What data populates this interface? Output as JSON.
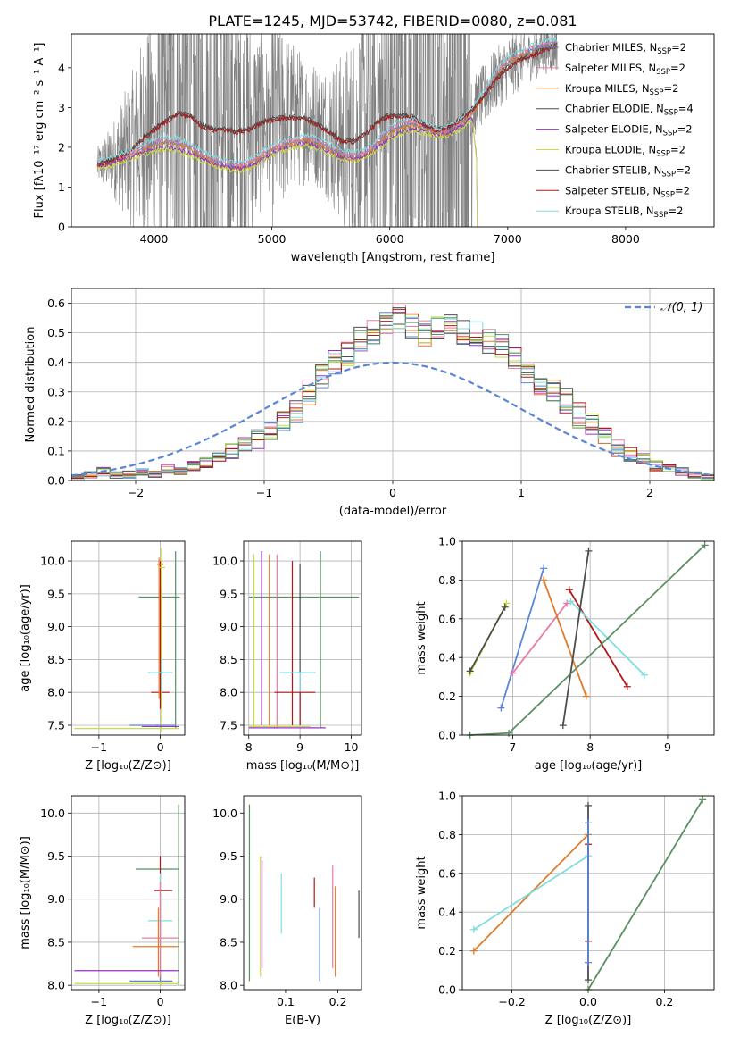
{
  "title": "PLATE=1245, MJD=53742, FIBERID=0080, z=0.081",
  "colors": {
    "chabrier_miles": "#5b86d6",
    "salpeter_miles": "#ea7aa6",
    "kroupa_miles": "#e07b2a",
    "chabrier_elodie": "#4d4d4d",
    "salpeter_elodie": "#9a2fc2",
    "kroupa_elodie": "#c8de3c",
    "chabrier_stelib": "#4d4d4d",
    "salpeter_stelib": "#b21818",
    "kroupa_stelib": "#7fdde0",
    "green": "#5a8f63",
    "data": "#808080"
  },
  "chart_data": [
    {
      "id": "spectrum",
      "type": "line",
      "xlabel": "wavelength [Angstrom, rest frame]",
      "ylabel": "Flux [fλ10⁻¹⁷ erg cm⁻² s⁻¹ A⁻¹]",
      "xlim": [
        3300,
        8750
      ],
      "ylim": [
        0,
        4.85
      ],
      "xticks": [
        "4000",
        "5000",
        "6000",
        "7000",
        "8000"
      ],
      "yticks": [
        "0",
        "1",
        "2",
        "3",
        "4"
      ],
      "data_range": [
        3520,
        7420
      ],
      "legend": [
        {
          "label": "Chabrier MILES, N",
          "sub": "SSP",
          "suffix": "=2",
          "color_key": "chabrier_miles"
        },
        {
          "label": "Salpeter MILES, N",
          "sub": "SSP",
          "suffix": "=2",
          "color_key": "salpeter_miles"
        },
        {
          "label": "Kroupa MILES, N",
          "sub": "SSP",
          "suffix": "=2",
          "color_key": "kroupa_miles"
        },
        {
          "label": "Chabrier ELODIE, N",
          "sub": "SSP",
          "suffix": "=4",
          "color_key": "chabrier_elodie"
        },
        {
          "label": "Salpeter ELODIE, N",
          "sub": "SSP",
          "suffix": "=2",
          "color_key": "salpeter_elodie"
        },
        {
          "label": "Kroupa ELODIE, N",
          "sub": "SSP",
          "suffix": "=2",
          "color_key": "kroupa_elodie"
        },
        {
          "label": "Chabrier STELIB, N",
          "sub": "SSP",
          "suffix": "=2",
          "color_key": "chabrier_stelib"
        },
        {
          "label": "Salpeter STELIB, N",
          "sub": "SSP",
          "suffix": "=2",
          "color_key": "salpeter_stelib"
        },
        {
          "label": "Kroupa STELIB, N",
          "sub": "SSP",
          "suffix": "=2",
          "color_key": "kroupa_stelib"
        }
      ],
      "model_anchors": {
        "x": [
          3520,
          3650,
          3800,
          3900,
          4000,
          4100,
          4200,
          4300,
          4400,
          4500,
          4600,
          4700,
          4800,
          4900,
          5000,
          5100,
          5200,
          5300,
          5400,
          5500,
          5600,
          5700,
          5800,
          5900,
          6000,
          6100,
          6200,
          6300,
          6400,
          6500,
          6600,
          6700,
          6800,
          6900,
          7000,
          7100,
          7200,
          7300,
          7420
        ],
        "stelib": [
          1.55,
          1.7,
          1.9,
          2.2,
          2.45,
          2.65,
          2.85,
          2.8,
          2.55,
          2.45,
          2.45,
          2.4,
          2.45,
          2.6,
          2.7,
          2.75,
          2.75,
          2.7,
          2.55,
          2.35,
          2.15,
          2.15,
          2.35,
          2.65,
          2.8,
          2.8,
          2.75,
          2.55,
          2.45,
          2.5,
          2.7,
          2.95,
          3.3,
          3.7,
          4.0,
          4.2,
          4.3,
          4.45,
          4.55
        ],
        "miles": [
          1.55,
          1.65,
          1.8,
          1.95,
          2.1,
          2.15,
          2.1,
          2.0,
          1.8,
          1.65,
          1.55,
          1.5,
          1.55,
          1.75,
          1.95,
          2.05,
          2.15,
          2.2,
          2.1,
          1.95,
          1.8,
          1.75,
          1.85,
          2.1,
          2.4,
          2.55,
          2.6,
          2.5,
          2.35,
          2.4,
          2.6,
          2.9,
          3.3,
          3.8,
          4.15,
          4.3,
          4.45,
          4.55,
          4.6
        ],
        "elodie": [
          1.5,
          1.6,
          1.75,
          1.85,
          1.95,
          2.0,
          1.95,
          1.85,
          1.7,
          1.6,
          1.5,
          1.45,
          1.5,
          1.65,
          1.85,
          1.95,
          2.05,
          2.1,
          2.0,
          1.85,
          1.75,
          1.7,
          1.8,
          2.0,
          2.25,
          2.4,
          2.45,
          2.4,
          2.3,
          2.35,
          2.5,
          2.75,
          0.0,
          0.0,
          0.0,
          0.0,
          0.0,
          0.0,
          0.0
        ]
      }
    },
    {
      "id": "residuals",
      "type": "step",
      "xlabel": "(data-model)/error",
      "ylabel": "Normed distribution",
      "xlim": [
        -2.5,
        2.5
      ],
      "ylim": [
        0,
        0.65
      ],
      "xticks": [
        "−2",
        "−1",
        "0",
        "1",
        "2"
      ],
      "xtick_values": [
        -2,
        -1,
        0,
        1,
        2
      ],
      "yticks": [
        "0.0",
        "0.1",
        "0.2",
        "0.3",
        "0.4",
        "0.5",
        "0.6"
      ],
      "legend": [
        "𝒩(0, 1)"
      ],
      "bin_width": 0.1,
      "bin_start": -2.5,
      "heights": [
        0.01,
        0.02,
        0.03,
        0.02,
        0.02,
        0.03,
        0.02,
        0.04,
        0.03,
        0.05,
        0.06,
        0.08,
        0.1,
        0.12,
        0.14,
        0.17,
        0.2,
        0.24,
        0.3,
        0.35,
        0.4,
        0.43,
        0.48,
        0.5,
        0.53,
        0.55,
        0.52,
        0.5,
        0.51,
        0.53,
        0.5,
        0.5,
        0.47,
        0.45,
        0.41,
        0.37,
        0.32,
        0.3,
        0.27,
        0.22,
        0.19,
        0.15,
        0.11,
        0.09,
        0.07,
        0.05,
        0.04,
        0.03,
        0.02,
        0.01
      ]
    },
    {
      "id": "age_vs_Z",
      "type": "errorbar",
      "xlabel": "Z [log₁₀(Z/Z⊙)]",
      "ylabel": "age  [log₁₀(age/yr)]",
      "xlim": [
        -1.45,
        0.4
      ],
      "ylim": [
        7.35,
        10.3
      ],
      "xticks": [
        "−1",
        "0"
      ],
      "xtick_values": [
        -1,
        0
      ],
      "yticks": [
        "7.5",
        "8.0",
        "8.5",
        "9.0",
        "9.5",
        "10.0"
      ],
      "ytick_values": [
        7.5,
        8.0,
        8.5,
        9.0,
        9.5,
        10.0
      ]
    },
    {
      "id": "age_vs_mass",
      "type": "errorbar",
      "xlabel": "mass [log₁₀(M/M⊙)]",
      "xlim": [
        7.9,
        10.2
      ],
      "ylim": [
        7.35,
        10.3
      ],
      "xticks": [
        "8",
        "9",
        "10"
      ],
      "xtick_values": [
        8,
        9,
        10
      ],
      "yticks": [
        "7.5",
        "8.0",
        "8.5",
        "9.0",
        "9.5",
        "10.0"
      ],
      "ytick_values": [
        7.5,
        8.0,
        8.5,
        9.0,
        9.5,
        10.0
      ]
    },
    {
      "id": "weight_vs_age",
      "type": "line",
      "xlabel": "age  [log₁₀(age/yr)]",
      "ylabel": "mass weight",
      "xlim": [
        6.35,
        9.6
      ],
      "ylim": [
        0,
        1
      ],
      "xticks": [
        "7",
        "8",
        "9"
      ],
      "xtick_values": [
        7,
        8,
        9
      ],
      "yticks": [
        "0.0",
        "0.2",
        "0.4",
        "0.6",
        "0.8",
        "1.0"
      ],
      "ytick_values": [
        0,
        0.2,
        0.4,
        0.6,
        0.8,
        1.0
      ],
      "series": [
        {
          "color_key": "kroupa_elodie",
          "x": [
            6.45,
            6.92
          ],
          "y": [
            0.32,
            0.68
          ]
        },
        {
          "color_key": "chabrier_elodie",
          "x": [
            6.45,
            6.9
          ],
          "y": [
            0.33,
            0.66
          ]
        },
        {
          "color_key": "chabrier_miles",
          "x": [
            6.85,
            7.4
          ],
          "y": [
            0.14,
            0.86
          ]
        },
        {
          "color_key": "salpeter_miles",
          "x": [
            7.0,
            7.7
          ],
          "y": [
            0.32,
            0.68
          ]
        },
        {
          "color_key": "kroupa_miles",
          "x": [
            7.4,
            7.95
          ],
          "y": [
            0.8,
            0.2
          ]
        },
        {
          "color_key": "salpeter_stelib",
          "x": [
            7.73,
            8.48
          ],
          "y": [
            0.75,
            0.25
          ]
        },
        {
          "color_key": "kroupa_stelib",
          "x": [
            7.75,
            8.7
          ],
          "y": [
            0.69,
            0.31
          ]
        },
        {
          "color_key": "chabrier_stelib",
          "x": [
            7.65,
            7.98
          ],
          "y": [
            0.05,
            0.95
          ]
        },
        {
          "color_key": "green",
          "x": [
            6.45,
            6.95,
            9.48
          ],
          "y": [
            0.0,
            0.01,
            0.98
          ]
        }
      ]
    },
    {
      "id": "mass_vs_Z",
      "type": "errorbar",
      "xlabel": "Z [log₁₀(Z/Z⊙)]",
      "ylabel": "mass [log₁₀(M/M⊙)]",
      "xlim": [
        -1.45,
        0.4
      ],
      "ylim": [
        7.95,
        10.2
      ],
      "xticks": [
        "−1",
        "0"
      ],
      "xtick_values": [
        -1,
        0
      ],
      "yticks": [
        "8.0",
        "8.5",
        "9.0",
        "9.5",
        "10.0"
      ],
      "ytick_values": [
        8.0,
        8.5,
        9.0,
        9.5,
        10.0
      ]
    },
    {
      "id": "mass_vs_ebv",
      "type": "errorbar",
      "xlabel": "E(B-V)",
      "xlim": [
        0.02,
        0.245
      ],
      "ylim": [
        7.95,
        10.2
      ],
      "xticks": [
        "0.1",
        "0.2"
      ],
      "xtick_values": [
        0.1,
        0.2
      ],
      "yticks": [
        "8.0",
        "8.5",
        "9.0",
        "9.5",
        "10.0"
      ],
      "ytick_values": [
        8.0,
        8.5,
        9.0,
        9.5,
        10.0
      ]
    },
    {
      "id": "weight_vs_Z",
      "type": "line",
      "xlabel": "Z [log₁₀(Z/Z⊙)]",
      "ylabel": "mass weight",
      "xlim": [
        -0.33,
        0.33
      ],
      "ylim": [
        0,
        1
      ],
      "xticks": [
        "−0.2",
        "0.0",
        "0.2"
      ],
      "xtick_values": [
        -0.2,
        0.0,
        0.2
      ],
      "yticks": [
        "0.0",
        "0.2",
        "0.4",
        "0.6",
        "0.8",
        "1.0"
      ],
      "ytick_values": [
        0,
        0.2,
        0.4,
        0.6,
        0.8,
        1.0
      ],
      "series": [
        {
          "color_key": "kroupa_miles",
          "x": [
            -0.3,
            0.0
          ],
          "y": [
            0.2,
            0.8
          ]
        },
        {
          "color_key": "kroupa_stelib",
          "x": [
            -0.3,
            0.0
          ],
          "y": [
            0.31,
            0.69
          ]
        },
        {
          "color_key": "green",
          "x": [
            0.0,
            0.3
          ],
          "y": [
            0.0,
            0.98
          ]
        },
        {
          "color_key": "salpeter_stelib",
          "x": [
            0.0,
            0.0
          ],
          "y": [
            0.25,
            0.75
          ]
        },
        {
          "color_key": "chabrier_stelib",
          "x": [
            0.0,
            0.0
          ],
          "y": [
            0.05,
            0.95
          ]
        },
        {
          "color_key": "chabrier_miles",
          "x": [
            0.0,
            0.0
          ],
          "y": [
            0.14,
            0.86
          ]
        }
      ]
    }
  ]
}
